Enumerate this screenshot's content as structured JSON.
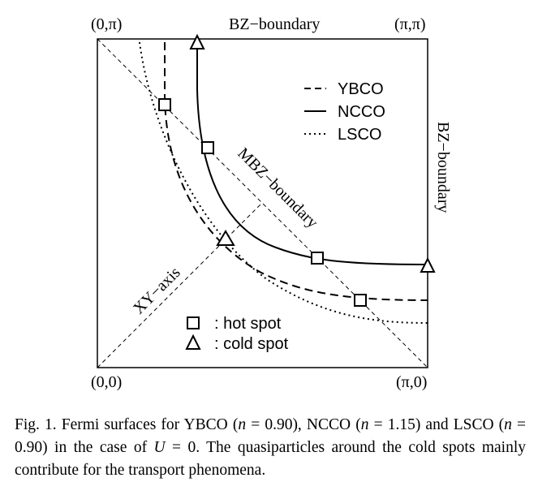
{
  "figure": {
    "corners": {
      "top_left": "(0,π)",
      "top_right": "(π,π)",
      "bottom_left": "(0,0)",
      "bottom_right": "(π,0)"
    },
    "top_boundary_label": "BZ−boundary",
    "right_boundary_label": "BZ−boundary",
    "mbz_label": "MBZ−boundary",
    "xy_axis_label": "XY−axis",
    "legend": {
      "line_styles": [
        {
          "style": "dashed",
          "label": "YBCO"
        },
        {
          "style": "solid",
          "label": "NCCO"
        },
        {
          "style": "dotted",
          "label": "LSCO"
        }
      ],
      "markers": [
        {
          "shape": "square",
          "label": ": hot spot"
        },
        {
          "shape": "triangle",
          "label": ": cold spot"
        }
      ]
    }
  },
  "caption": {
    "parts": [
      "Fig. 1. Fermi surfaces for YBCO (",
      "n",
      " = 0.90), NCCO (",
      "n",
      " = 1.15) and LSCO (",
      "n",
      " = 0.90) in the case of ",
      "U",
      " = 0. The quasiparticles around the cold spots mainly contribute for the transport phenomena."
    ]
  }
}
